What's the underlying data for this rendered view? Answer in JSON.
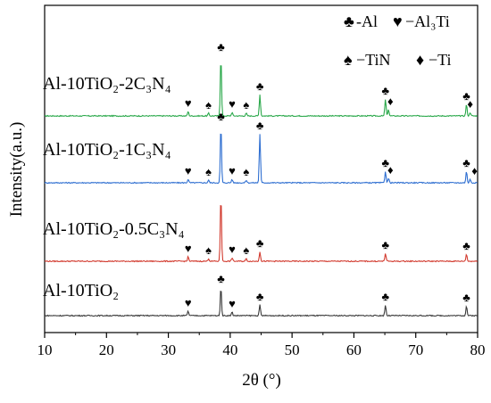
{
  "chart_data": {
    "type": "line",
    "xlabel": "2θ (°)",
    "ylabel": "Intensity(a.u.)",
    "xlim": [
      10,
      80
    ],
    "x_ticks": [
      10,
      20,
      30,
      40,
      50,
      60,
      70,
      80
    ],
    "grid": false,
    "legend_position": "top-right",
    "legend": [
      {
        "symbol": "♣",
        "symbol_name": "club-icon",
        "text": "-Al"
      },
      {
        "symbol": "♥",
        "symbol_name": "heart-icon",
        "text": "−Al₃Ti"
      },
      {
        "symbol": "♠",
        "symbol_name": "spade-icon",
        "text": "−TiN"
      },
      {
        "symbol": "♦",
        "symbol_name": "diamond-icon",
        "text": "−Ti"
      }
    ],
    "series": [
      {
        "name": "Al-10TiO₂-2C₃N₄",
        "color": "#2aa84a",
        "peaks": [
          {
            "x": 33.2,
            "h": 5
          },
          {
            "x": 36.5,
            "h": 3
          },
          {
            "x": 38.5,
            "h": 68
          },
          {
            "x": 40.3,
            "h": 4
          },
          {
            "x": 42.6,
            "h": 3
          },
          {
            "x": 44.8,
            "h": 24
          },
          {
            "x": 65.1,
            "h": 19
          },
          {
            "x": 65.6,
            "h": 7
          },
          {
            "x": 78.2,
            "h": 13
          },
          {
            "x": 78.8,
            "h": 4
          }
        ],
        "markers": [
          {
            "x": 33.2,
            "symbol": "♥"
          },
          {
            "x": 36.5,
            "symbol": "♠"
          },
          {
            "x": 38.5,
            "symbol": "♣"
          },
          {
            "x": 40.3,
            "symbol": "♥"
          },
          {
            "x": 42.6,
            "symbol": "♠"
          },
          {
            "x": 44.8,
            "symbol": "♣"
          },
          {
            "x": 65.1,
            "symbol": "♣"
          },
          {
            "x": 65.9,
            "symbol": "♦"
          },
          {
            "x": 78.2,
            "symbol": "♣"
          },
          {
            "x": 78.8,
            "symbol": "♦"
          }
        ]
      },
      {
        "name": "Al-10TiO₂-1C₃N₄",
        "color": "#2f6fd1",
        "peaks": [
          {
            "x": 33.2,
            "h": 4
          },
          {
            "x": 36.5,
            "h": 3
          },
          {
            "x": 38.5,
            "h": 65
          },
          {
            "x": 40.3,
            "h": 4
          },
          {
            "x": 42.6,
            "h": 3
          },
          {
            "x": 44.8,
            "h": 55
          },
          {
            "x": 65.1,
            "h": 13
          },
          {
            "x": 65.6,
            "h": 5
          },
          {
            "x": 78.2,
            "h": 13
          },
          {
            "x": 78.8,
            "h": 4
          }
        ],
        "markers": [
          {
            "x": 33.2,
            "symbol": "♥"
          },
          {
            "x": 36.5,
            "symbol": "♠"
          },
          {
            "x": 38.5,
            "symbol": "♣"
          },
          {
            "x": 40.3,
            "symbol": "♥"
          },
          {
            "x": 42.6,
            "symbol": "♠"
          },
          {
            "x": 44.8,
            "symbol": "♣"
          },
          {
            "x": 65.1,
            "symbol": "♣"
          },
          {
            "x": 65.9,
            "symbol": "♦"
          },
          {
            "x": 78.2,
            "symbol": "♣"
          },
          {
            "x": 79.5,
            "symbol": "♦"
          }
        ]
      },
      {
        "name": "Al-10TiO₂-0.5C₃N₄",
        "color": "#d23b2f",
        "peaks": [
          {
            "x": 33.2,
            "h": 5
          },
          {
            "x": 36.5,
            "h": 3
          },
          {
            "x": 38.5,
            "h": 75
          },
          {
            "x": 40.3,
            "h": 4
          },
          {
            "x": 42.6,
            "h": 3
          },
          {
            "x": 44.8,
            "h": 11
          },
          {
            "x": 65.1,
            "h": 9
          },
          {
            "x": 78.2,
            "h": 8
          }
        ],
        "markers": [
          {
            "x": 33.2,
            "symbol": "♥"
          },
          {
            "x": 36.5,
            "symbol": "♠"
          },
          {
            "x": 40.3,
            "symbol": "♥"
          },
          {
            "x": 42.6,
            "symbol": "♠"
          },
          {
            "x": 44.8,
            "symbol": "♣"
          },
          {
            "x": 65.1,
            "symbol": "♣"
          },
          {
            "x": 78.2,
            "symbol": "♣"
          }
        ]
      },
      {
        "name": "Al-10TiO₂",
        "color": "#3a3a3a",
        "peaks": [
          {
            "x": 33.2,
            "h": 5
          },
          {
            "x": 38.5,
            "h": 32
          },
          {
            "x": 40.3,
            "h": 4
          },
          {
            "x": 44.8,
            "h": 12
          },
          {
            "x": 65.1,
            "h": 12
          },
          {
            "x": 78.2,
            "h": 11
          }
        ],
        "markers": [
          {
            "x": 33.2,
            "symbol": "♥"
          },
          {
            "x": 38.5,
            "symbol": "♣"
          },
          {
            "x": 40.3,
            "symbol": "♥"
          },
          {
            "x": 44.8,
            "symbol": "♣"
          },
          {
            "x": 65.1,
            "symbol": "♣"
          },
          {
            "x": 78.2,
            "symbol": "♣"
          }
        ]
      }
    ]
  }
}
